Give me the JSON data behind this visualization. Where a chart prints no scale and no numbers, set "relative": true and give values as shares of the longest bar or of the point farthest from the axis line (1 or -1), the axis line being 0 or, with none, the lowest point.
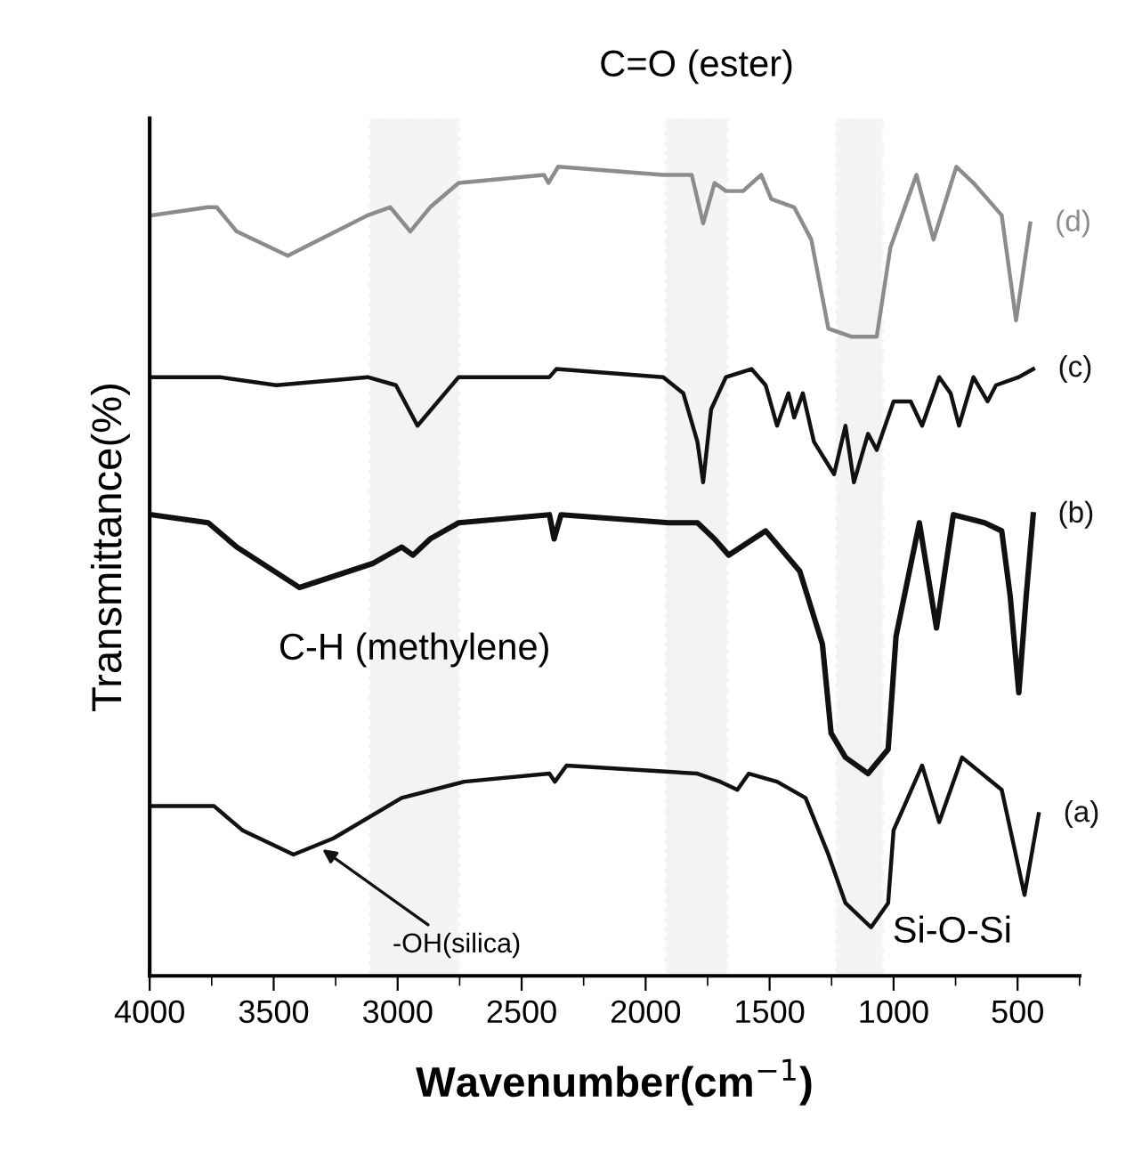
{
  "chart_data": {
    "type": "line",
    "relative": true,
    "xlabel": "Wavenumber(cm$^{−1}$)",
    "ylabel": "Transmittance(%)",
    "xlim": [
      4000,
      250
    ],
    "xticks": [
      4000,
      3500,
      3000,
      2500,
      2000,
      1500,
      1000,
      500
    ],
    "grid": false,
    "legend": false,
    "tick_labels": "x",
    "line_style": "solid",
    "marker": "none",
    "series": [
      {
        "name": "(a)",
        "color": "#111111",
        "x": [
          3993,
          3741,
          3626,
          3420,
          3259,
          2984,
          2732,
          2388,
          2366,
          2319,
          1791,
          1699,
          1630,
          1584,
          1470,
          1355,
          1263,
          1194,
          1091,
          1022,
          1000,
          885,
          816,
          724,
          564,
          472,
          415
        ],
        "values": [
          0.21,
          0.21,
          0.18,
          0.15,
          0.17,
          0.22,
          0.24,
          0.25,
          0.24,
          0.26,
          0.25,
          0.24,
          0.23,
          0.25,
          0.24,
          0.22,
          0.15,
          0.09,
          0.06,
          0.09,
          0.18,
          0.26,
          0.19,
          0.27,
          0.23,
          0.1,
          0.2
        ]
      },
      {
        "name": "(b)",
        "color": "#111111",
        "x": [
          3993,
          3764,
          3649,
          3396,
          3098,
          2984,
          2938,
          2869,
          2754,
          2388,
          2369,
          2341,
          1906,
          1791,
          1722,
          1665,
          1516,
          1378,
          1287,
          1252,
          1194,
          1103,
          1022,
          990,
          896,
          827,
          759,
          633,
          564,
          530,
          495,
          465,
          437
        ],
        "values": [
          0.57,
          0.56,
          0.53,
          0.48,
          0.51,
          0.53,
          0.52,
          0.54,
          0.56,
          0.57,
          0.54,
          0.57,
          0.56,
          0.56,
          0.54,
          0.52,
          0.55,
          0.5,
          0.41,
          0.3,
          0.27,
          0.25,
          0.28,
          0.42,
          0.56,
          0.43,
          0.57,
          0.56,
          0.55,
          0.47,
          0.35,
          0.47,
          0.57
        ]
      },
      {
        "name": "(c)",
        "color": "#111111",
        "x": [
          3993,
          3718,
          3489,
          3121,
          3007,
          2920,
          2754,
          2388,
          2360,
          1929,
          1848,
          1791,
          1768,
          1736,
          1676,
          1573,
          1516,
          1470,
          1424,
          1401,
          1366,
          1321,
          1240,
          1194,
          1160,
          1103,
          1068,
          1000,
          931,
          885,
          816,
          770,
          736,
          678,
          621,
          587,
          495,
          437
        ],
        "values": [
          0.74,
          0.74,
          0.73,
          0.74,
          0.73,
          0.68,
          0.74,
          0.74,
          0.75,
          0.74,
          0.72,
          0.66,
          0.61,
          0.7,
          0.74,
          0.75,
          0.73,
          0.68,
          0.72,
          0.69,
          0.72,
          0.66,
          0.62,
          0.68,
          0.61,
          0.67,
          0.65,
          0.71,
          0.71,
          0.68,
          0.74,
          0.72,
          0.68,
          0.74,
          0.71,
          0.73,
          0.74,
          0.75
        ]
      },
      {
        "name": "(d)",
        "color": "#8c8c8c",
        "x": [
          3993,
          3764,
          3730,
          3649,
          3443,
          3121,
          3030,
          2949,
          2869,
          2754,
          2410,
          2392,
          2353,
          1929,
          1814,
          1768,
          1722,
          1676,
          1607,
          1534,
          1493,
          1401,
          1332,
          1263,
          1171,
          1068,
          1013,
          908,
          839,
          747,
          678,
          564,
          506,
          449
        ],
        "values": [
          0.94,
          0.95,
          0.95,
          0.92,
          0.89,
          0.94,
          0.95,
          0.92,
          0.95,
          0.98,
          0.99,
          0.98,
          1.0,
          0.99,
          0.99,
          0.93,
          0.98,
          0.97,
          0.97,
          0.99,
          0.96,
          0.95,
          0.91,
          0.8,
          0.79,
          0.79,
          0.9,
          0.99,
          0.91,
          1.0,
          0.98,
          0.94,
          0.81,
          0.93
        ]
      }
    ],
    "bands": [
      {
        "axis": "x",
        "from": 3110,
        "to": 2754,
        "label": "C-H (methylene)",
        "color": "#a0a0a0"
      },
      {
        "axis": "x",
        "from": 1917,
        "to": 1672,
        "label": "C=O (ester)",
        "color": "#a0a0a0"
      },
      {
        "axis": "x",
        "from": 1229,
        "to": 1046,
        "label": "Si-O-Si",
        "color": "#a0a0a0"
      }
    ],
    "annotations": [
      {
        "text": "-OH(silica)",
        "x": 3320,
        "y": 0.16
      }
    ]
  }
}
